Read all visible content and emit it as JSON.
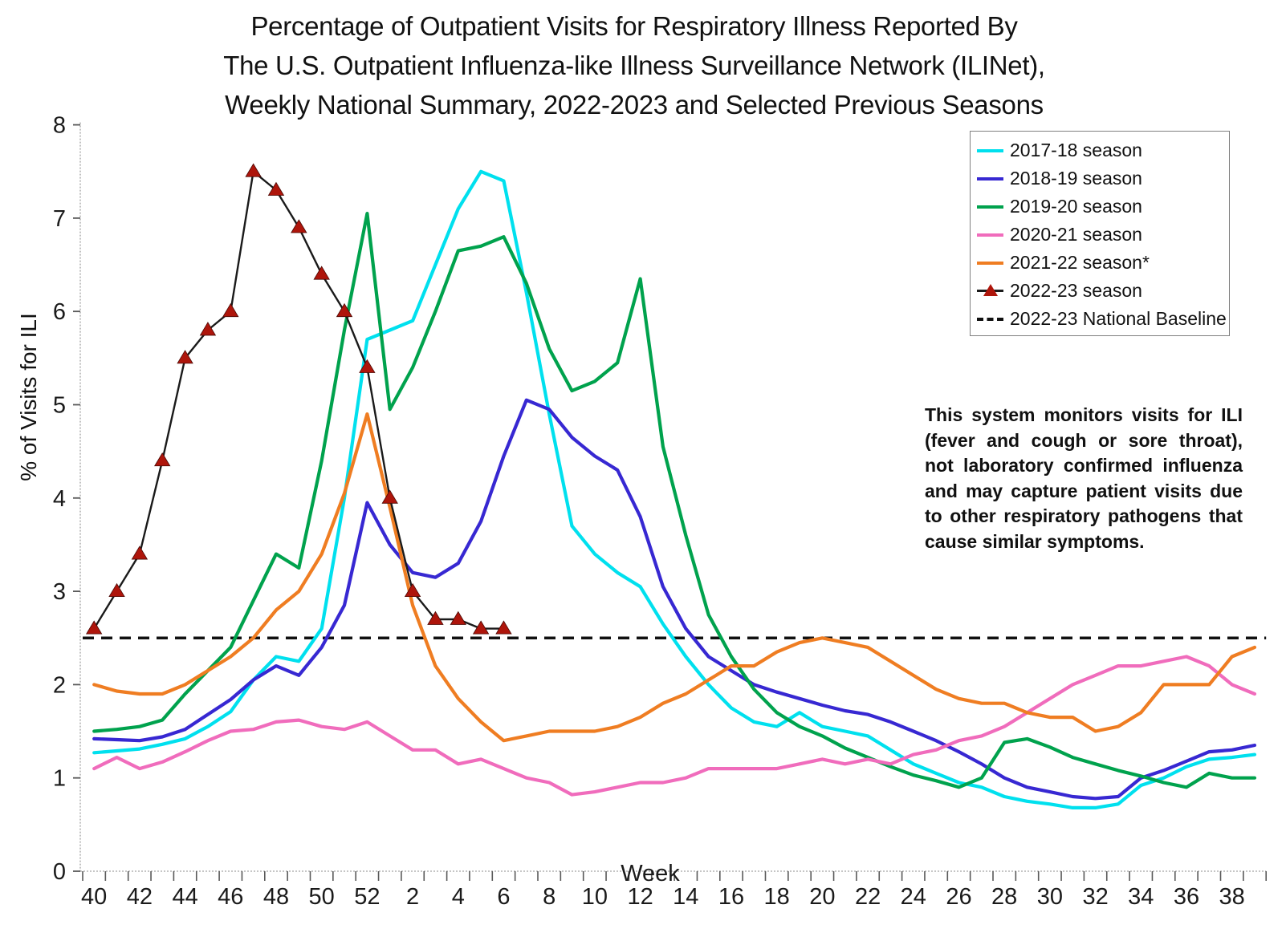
{
  "title": {
    "line1": "Percentage of Outpatient Visits for Respiratory Illness Reported By",
    "line2": "The U.S. Outpatient Influenza-like Illness Surveillance Network (ILINet),",
    "line3": "Weekly National Summary, 2022-2023 and Selected Previous Seasons"
  },
  "axes": {
    "x_label": "Week",
    "y_label": "% of Visits for ILI",
    "y_ticks": [
      "0",
      "1",
      "2",
      "3",
      "4",
      "5",
      "6",
      "7",
      "8"
    ],
    "x_tick_labels": [
      "40",
      "42",
      "44",
      "46",
      "48",
      "50",
      "52",
      "2",
      "4",
      "6",
      "8",
      "10",
      "12",
      "14",
      "16",
      "18",
      "20",
      "22",
      "24",
      "26",
      "28",
      "30",
      "32",
      "34",
      "36",
      "38"
    ]
  },
  "legend": {
    "items": [
      {
        "label": "2017-18 season",
        "color": "#00e0ee",
        "style": "solid"
      },
      {
        "label": "2018-19 season",
        "color": "#3728d2",
        "style": "solid"
      },
      {
        "label": "2019-20 season",
        "color": "#00a24d",
        "style": "solid"
      },
      {
        "label": "2020-21 season",
        "color": "#f06cbc",
        "style": "solid"
      },
      {
        "label": "2021-22 season*",
        "color": "#ef7d22",
        "style": "solid"
      },
      {
        "label": "2022-23 season",
        "color": "#ae150b",
        "style": "triangle-line"
      },
      {
        "label": "2022-23 National Baseline",
        "color": "#111111",
        "style": "dashed"
      }
    ]
  },
  "annotation": {
    "text": "This system monitors visits for ILI (fever and cough or sore throat), not laboratory confirmed influenza and may capture patient visits due to other respiratory pathogens that cause similar symptoms."
  },
  "chart_data": {
    "type": "line",
    "title": "Percentage of Outpatient Visits for Respiratory Illness Reported By ILINet, Weekly National Summary, 2022-2023 and Selected Previous Seasons",
    "xlabel": "Week",
    "ylabel": "% of Visits for ILI",
    "ylim": [
      0,
      8
    ],
    "grid": false,
    "legend_position": "upper right",
    "weeks": [
      40,
      41,
      42,
      43,
      44,
      45,
      46,
      47,
      48,
      49,
      50,
      51,
      52,
      1,
      2,
      3,
      4,
      5,
      6,
      7,
      8,
      9,
      10,
      11,
      12,
      13,
      14,
      15,
      16,
      17,
      18,
      19,
      20,
      21,
      22,
      23,
      24,
      25,
      26,
      27,
      28,
      29,
      30,
      31,
      32,
      33,
      34,
      35,
      36,
      37,
      38,
      39
    ],
    "series": [
      {
        "name": "2017-18 season",
        "color": "#00e0ee",
        "values": [
          1.27,
          1.29,
          1.31,
          1.36,
          1.42,
          1.55,
          1.71,
          2.05,
          2.3,
          2.25,
          2.6,
          4.0,
          5.7,
          5.8,
          5.9,
          6.5,
          7.1,
          7.5,
          7.4,
          6.2,
          4.9,
          3.7,
          3.4,
          3.2,
          3.05,
          2.65,
          2.3,
          2.0,
          1.75,
          1.6,
          1.55,
          1.7,
          1.55,
          1.5,
          1.45,
          1.3,
          1.15,
          1.05,
          0.95,
          0.9,
          0.8,
          0.75,
          0.72,
          0.68,
          0.68,
          0.72,
          0.92,
          1.0,
          1.12,
          1.2,
          1.22,
          1.25
        ]
      },
      {
        "name": "2018-19 season",
        "color": "#3728d2",
        "values": [
          1.42,
          1.41,
          1.4,
          1.44,
          1.52,
          1.68,
          1.84,
          2.05,
          2.2,
          2.1,
          2.4,
          2.85,
          3.95,
          3.5,
          3.2,
          3.15,
          3.3,
          3.75,
          4.45,
          5.05,
          4.95,
          4.65,
          4.45,
          4.3,
          3.8,
          3.05,
          2.6,
          2.3,
          2.15,
          2.0,
          1.92,
          1.85,
          1.78,
          1.72,
          1.68,
          1.6,
          1.5,
          1.4,
          1.28,
          1.15,
          1.0,
          0.9,
          0.85,
          0.8,
          0.78,
          0.8,
          1.0,
          1.08,
          1.18,
          1.28,
          1.3,
          1.35
        ]
      },
      {
        "name": "2019-20 season",
        "color": "#00a24d",
        "values": [
          1.5,
          1.52,
          1.55,
          1.62,
          1.9,
          2.15,
          2.4,
          2.9,
          3.4,
          3.25,
          4.4,
          5.8,
          7.05,
          4.95,
          5.4,
          6.0,
          6.65,
          6.7,
          6.8,
          6.3,
          5.6,
          5.15,
          5.25,
          5.45,
          6.35,
          4.55,
          3.6,
          2.75,
          2.3,
          1.95,
          1.7,
          1.55,
          1.45,
          1.32,
          1.22,
          1.12,
          1.03,
          0.97,
          0.9,
          1.0,
          1.38,
          1.42,
          1.33,
          1.22,
          1.15,
          1.08,
          1.02,
          0.95,
          0.9,
          1.05,
          1.0,
          1.0
        ]
      },
      {
        "name": "2020-21 season",
        "color": "#f06cbc",
        "values": [
          1.1,
          1.22,
          1.1,
          1.17,
          1.28,
          1.4,
          1.5,
          1.52,
          1.6,
          1.62,
          1.55,
          1.52,
          1.6,
          1.45,
          1.3,
          1.3,
          1.15,
          1.2,
          1.1,
          1.0,
          0.95,
          0.82,
          0.85,
          0.9,
          0.95,
          0.95,
          1.0,
          1.1,
          1.1,
          1.1,
          1.1,
          1.15,
          1.2,
          1.15,
          1.2,
          1.15,
          1.25,
          1.3,
          1.4,
          1.45,
          1.55,
          1.7,
          1.85,
          2.0,
          2.1,
          2.2,
          2.2,
          2.25,
          2.3,
          2.2,
          2.0,
          1.9
        ]
      },
      {
        "name": "2021-22 season*",
        "color": "#ef7d22",
        "values": [
          2.0,
          1.93,
          1.9,
          1.9,
          2.0,
          2.15,
          2.3,
          2.5,
          2.8,
          3.0,
          3.4,
          4.05,
          4.9,
          3.9,
          2.85,
          2.2,
          1.85,
          1.6,
          1.4,
          1.45,
          1.5,
          1.5,
          1.5,
          1.55,
          1.65,
          1.8,
          1.9,
          2.05,
          2.2,
          2.2,
          2.35,
          2.45,
          2.5,
          2.45,
          2.4,
          2.25,
          2.1,
          1.95,
          1.85,
          1.8,
          1.8,
          1.7,
          1.65,
          1.65,
          1.5,
          1.55,
          1.7,
          2.0,
          2.0,
          2.0,
          2.3,
          2.4
        ]
      },
      {
        "name": "2022-23 season",
        "color": "#ae150b",
        "line_color": "#1a1a1a",
        "marker": "triangle",
        "values": [
          2.6,
          3.0,
          3.4,
          4.4,
          5.5,
          5.8,
          6.0,
          7.5,
          7.3,
          6.9,
          6.4,
          6.0,
          5.4,
          4.0,
          3.0,
          2.7,
          2.7,
          2.6,
          2.6,
          null,
          null,
          null,
          null,
          null,
          null,
          null,
          null,
          null,
          null,
          null,
          null,
          null,
          null,
          null,
          null,
          null,
          null,
          null,
          null,
          null,
          null,
          null,
          null,
          null,
          null,
          null,
          null,
          null,
          null,
          null,
          null,
          null
        ]
      }
    ],
    "baseline": {
      "name": "2022-23 National Baseline",
      "value": 2.5,
      "color": "#111111",
      "style": "dashed"
    }
  }
}
